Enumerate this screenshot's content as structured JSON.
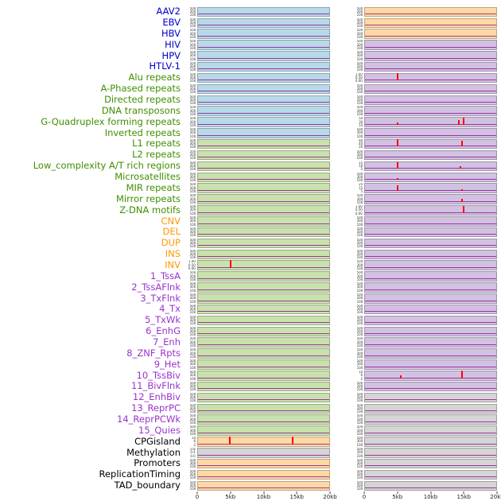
{
  "figure": {
    "x_ticks": [
      "0",
      "5kb",
      "10kb",
      "15kb",
      "20kb"
    ],
    "x_range_kb": [
      0,
      20
    ],
    "default_yticks": [
      "500",
      "300",
      "100"
    ],
    "colors": {
      "spike": "#ff0000",
      "baseline": "#8b008b",
      "label_groups": {
        "virus": "#0000cc",
        "repeat": "#3f8f00",
        "sv": "#ff9900",
        "chromhmm": "#9933cc",
        "other": "#000000"
      },
      "panels": {
        "blue": "#b8d9e8",
        "green": "#c9e2ad",
        "orange": "#fed9a4",
        "purple": "#d2c2e2",
        "gray": "#d5d5d5"
      }
    }
  },
  "chart_data": {
    "type": "line",
    "title": "",
    "xlabel": "",
    "ylabel": "",
    "x_axis": {
      "ticks": [
        "0",
        "5kb",
        "10kb",
        "15kb",
        "20kb"
      ],
      "range_kb": [
        0,
        20
      ]
    },
    "legend": "none",
    "description": "44 genomic feature tracks; each track has a left and right mini-panel over a 0-20kb window; red spikes mark enrichment peaks; dark magenta baseline near zero in every panel.",
    "tracks": [
      {
        "label": "AAV2",
        "group": "virus",
        "left": {
          "fill": "blue"
        },
        "right": {
          "fill": "orange"
        }
      },
      {
        "label": "EBV",
        "group": "virus",
        "left": {
          "fill": "blue"
        },
        "right": {
          "fill": "orange"
        }
      },
      {
        "label": "HBV",
        "group": "virus",
        "left": {
          "fill": "blue"
        },
        "right": {
          "fill": "orange"
        }
      },
      {
        "label": "HIV",
        "group": "virus",
        "left": {
          "fill": "blue"
        },
        "right": {
          "fill": "purple"
        }
      },
      {
        "label": "HPV",
        "group": "virus",
        "left": {
          "fill": "blue"
        },
        "right": {
          "fill": "purple"
        }
      },
      {
        "label": "HTLV-1",
        "group": "virus",
        "left": {
          "fill": "blue"
        },
        "right": {
          "fill": "purple"
        }
      },
      {
        "label": "Alu repeats",
        "group": "repeat",
        "left": {
          "fill": "blue"
        },
        "right": {
          "fill": "purple",
          "yticks": [
            "1.00",
            "0.50",
            "0.00"
          ],
          "spikes": [
            {
              "x_kb": 5,
              "h": 0.85
            }
          ]
        }
      },
      {
        "label": "A-Phased repeats",
        "group": "repeat",
        "left": {
          "fill": "blue"
        },
        "right": {
          "fill": "purple"
        }
      },
      {
        "label": "Directed repeats",
        "group": "repeat",
        "left": {
          "fill": "blue"
        },
        "right": {
          "fill": "purple"
        }
      },
      {
        "label": "DNA transposons",
        "group": "repeat",
        "left": {
          "fill": "blue"
        },
        "right": {
          "fill": "purple"
        }
      },
      {
        "label": "G-Quadruplex forming repeats",
        "group": "repeat",
        "left": {
          "fill": "blue"
        },
        "right": {
          "fill": "purple",
          "yticks": [
            "50",
            "30",
            "10"
          ],
          "spikes": [
            {
              "x_kb": 5,
              "h": 0.3
            },
            {
              "x_kb": 14.3,
              "h": 0.55
            },
            {
              "x_kb": 15,
              "h": 0.85
            }
          ]
        }
      },
      {
        "label": "Inverted repeats",
        "group": "repeat",
        "left": {
          "fill": "blue"
        },
        "right": {
          "fill": "purple"
        }
      },
      {
        "label": "L1 repeats",
        "group": "repeat",
        "left": {
          "fill": "green"
        },
        "right": {
          "fill": "purple",
          "yticks": [
            "60",
            "40",
            "20"
          ],
          "spikes": [
            {
              "x_kb": 5,
              "h": 0.9
            },
            {
              "x_kb": 14.8,
              "h": 0.75
            }
          ]
        }
      },
      {
        "label": "L2 repeats",
        "group": "repeat",
        "left": {
          "fill": "green"
        },
        "right": {
          "fill": "purple"
        }
      },
      {
        "label": "Low_complexity A/T rich regions",
        "group": "repeat",
        "left": {
          "fill": "green"
        },
        "right": {
          "fill": "purple",
          "yticks": [
            "15",
            "10",
            "5"
          ],
          "spikes": [
            {
              "x_kb": 5,
              "h": 0.8
            },
            {
              "x_kb": 14.6,
              "h": 0.28
            }
          ]
        }
      },
      {
        "label": "Microsatellites",
        "group": "repeat",
        "left": {
          "fill": "green"
        },
        "right": {
          "fill": "purple",
          "spikes": [
            {
              "x_kb": 5,
              "h": 0.22
            }
          ]
        }
      },
      {
        "label": "MIR repeats",
        "group": "repeat",
        "left": {
          "fill": "green"
        },
        "right": {
          "fill": "purple",
          "yticks": [
            "25",
            "15",
            "5"
          ],
          "spikes": [
            {
              "x_kb": 5,
              "h": 0.7
            },
            {
              "x_kb": 14.8,
              "h": 0.22
            }
          ]
        }
      },
      {
        "label": "Mirror repeats",
        "group": "repeat",
        "left": {
          "fill": "green"
        },
        "right": {
          "fill": "purple",
          "spikes": [
            {
              "x_kb": 14.8,
              "h": 0.35
            }
          ]
        }
      },
      {
        "label": "Z-DNA motifs",
        "group": "repeat",
        "left": {
          "fill": "green"
        },
        "right": {
          "fill": "purple",
          "yticks": [
            "1.00",
            "0.50",
            "0.00"
          ],
          "spikes": [
            {
              "x_kb": 15,
              "h": 0.8
            }
          ]
        }
      },
      {
        "label": "CNV",
        "group": "sv",
        "left": {
          "fill": "green"
        },
        "right": {
          "fill": "purple"
        }
      },
      {
        "label": "DEL",
        "group": "sv",
        "left": {
          "fill": "green"
        },
        "right": {
          "fill": "purple"
        }
      },
      {
        "label": "DUP",
        "group": "sv",
        "left": {
          "fill": "green"
        },
        "right": {
          "fill": "purple"
        }
      },
      {
        "label": "INS",
        "group": "sv",
        "left": {
          "fill": "green"
        },
        "right": {
          "fill": "purple"
        }
      },
      {
        "label": "INV",
        "group": "sv",
        "left": {
          "fill": "green",
          "yticks": [
            "1.00",
            "0.50",
            "0.00"
          ],
          "spikes": [
            {
              "x_kb": 5,
              "h": 0.95
            }
          ]
        },
        "right": {
          "fill": "purple"
        }
      },
      {
        "label": "1_TssA",
        "group": "chromhmm",
        "left": {
          "fill": "green"
        },
        "right": {
          "fill": "purple"
        }
      },
      {
        "label": "2_TssAFlnk",
        "group": "chromhmm",
        "left": {
          "fill": "green"
        },
        "right": {
          "fill": "purple"
        }
      },
      {
        "label": "3_TxFlnk",
        "group": "chromhmm",
        "left": {
          "fill": "green"
        },
        "right": {
          "fill": "purple"
        }
      },
      {
        "label": "4_Tx",
        "group": "chromhmm",
        "left": {
          "fill": "green"
        },
        "right": {
          "fill": "purple"
        }
      },
      {
        "label": "5_TxWk",
        "group": "chromhmm",
        "left": {
          "fill": "green"
        },
        "right": {
          "fill": "purple"
        }
      },
      {
        "label": "6_EnhG",
        "group": "chromhmm",
        "left": {
          "fill": "green"
        },
        "right": {
          "fill": "purple"
        }
      },
      {
        "label": "7_Enh",
        "group": "chromhmm",
        "left": {
          "fill": "green"
        },
        "right": {
          "fill": "purple"
        }
      },
      {
        "label": "8_ZNF_Rpts",
        "group": "chromhmm",
        "left": {
          "fill": "green"
        },
        "right": {
          "fill": "purple"
        }
      },
      {
        "label": "9_Het",
        "group": "chromhmm",
        "left": {
          "fill": "green"
        },
        "right": {
          "fill": "purple"
        }
      },
      {
        "label": "10_TssBiv",
        "group": "chromhmm",
        "left": {
          "fill": "green"
        },
        "right": {
          "fill": "purple",
          "yticks": [
            "10",
            "6",
            "2"
          ],
          "spikes": [
            {
              "x_kb": 5.4,
              "h": 0.35
            },
            {
              "x_kb": 14.8,
              "h": 0.9
            }
          ]
        }
      },
      {
        "label": "11_BivFlnk",
        "group": "chromhmm",
        "left": {
          "fill": "green"
        },
        "right": {
          "fill": "purple"
        }
      },
      {
        "label": "12_EnhBiv",
        "group": "chromhmm",
        "left": {
          "fill": "green"
        },
        "right": {
          "fill": "gray"
        }
      },
      {
        "label": "13_ReprPC",
        "group": "chromhmm",
        "left": {
          "fill": "green"
        },
        "right": {
          "fill": "gray"
        }
      },
      {
        "label": "14_ReprPCWk",
        "group": "chromhmm",
        "left": {
          "fill": "green"
        },
        "right": {
          "fill": "gray"
        }
      },
      {
        "label": "15_Quies",
        "group": "chromhmm",
        "left": {
          "fill": "green"
        },
        "right": {
          "fill": "gray"
        }
      },
      {
        "label": "CPGisland",
        "group": "other",
        "left": {
          "fill": "orange",
          "yticks": [
            "10",
            "6",
            "2"
          ],
          "spikes": [
            {
              "x_kb": 4.9,
              "h": 0.95
            },
            {
              "x_kb": 14.4,
              "h": 0.9
            }
          ]
        },
        "right": {
          "fill": "gray"
        }
      },
      {
        "label": "Methylation",
        "group": "other",
        "left": {
          "fill": "gray",
          "yticks": [
            "0.8",
            "0.4",
            "0.0"
          ]
        },
        "right": {
          "fill": "gray"
        }
      },
      {
        "label": "Promoters",
        "group": "other",
        "left": {
          "fill": "orange"
        },
        "right": {
          "fill": "gray"
        }
      },
      {
        "label": "ReplicationTiming",
        "group": "other",
        "left": {
          "fill": "orange"
        },
        "right": {
          "fill": "gray"
        }
      },
      {
        "label": "TAD_boundary",
        "group": "other",
        "left": {
          "fill": "orange"
        },
        "right": {
          "fill": "gray"
        }
      }
    ]
  }
}
